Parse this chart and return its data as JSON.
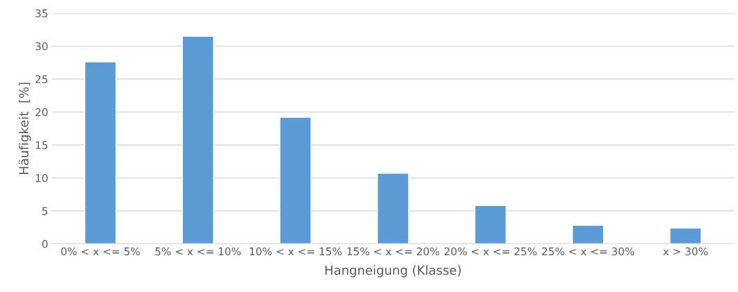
{
  "chart_data": {
    "type": "bar",
    "xlabel": "Hangneigung (Klasse)",
    "ylabel": "Häufigkeit  [%]",
    "categories": [
      "0% < x <= 5%",
      "5% < x <= 10%",
      "10% < x <= 15%",
      "15% < x <= 20%",
      "20% < x <= 25%",
      "25% < x <= 30%",
      "x > 30%"
    ],
    "values": [
      27.6,
      31.5,
      19.2,
      10.7,
      5.8,
      2.8,
      2.4
    ],
    "color": "#5b9bd5",
    "ylim": [
      0,
      35
    ],
    "yticks": [
      0,
      5,
      10,
      15,
      20,
      25,
      30,
      35
    ],
    "grid": "y",
    "legend": false
  }
}
